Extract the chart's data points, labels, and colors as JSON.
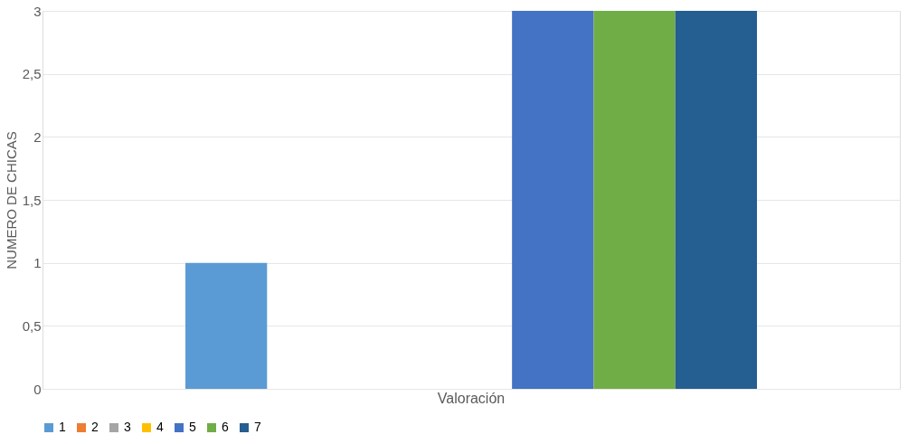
{
  "chart_data": {
    "type": "bar",
    "ylabel": "NUMERO DE CHICAS",
    "categories": [
      "Valoración"
    ],
    "series": [
      {
        "name": "1",
        "color": "#5b9bd5",
        "values": [
          1
        ]
      },
      {
        "name": "2",
        "color": "#ed7d31",
        "values": [
          0
        ]
      },
      {
        "name": "3",
        "color": "#a5a5a5",
        "values": [
          0
        ]
      },
      {
        "name": "4",
        "color": "#ffc000",
        "values": [
          0
        ]
      },
      {
        "name": "5",
        "color": "#4472c4",
        "values": [
          3
        ]
      },
      {
        "name": "6",
        "color": "#70ad47",
        "values": [
          3
        ]
      },
      {
        "name": "7",
        "color": "#255e91",
        "values": [
          3
        ]
      }
    ],
    "ylim": [
      0,
      3
    ],
    "yticks": [
      0,
      {
        "value": 0.5,
        "label": "0,5"
      },
      1,
      {
        "value": 1.5,
        "label": "1,5"
      },
      2,
      {
        "value": 2.5,
        "label": "2,5"
      },
      3
    ],
    "grid": "y",
    "legend": "bottom"
  }
}
